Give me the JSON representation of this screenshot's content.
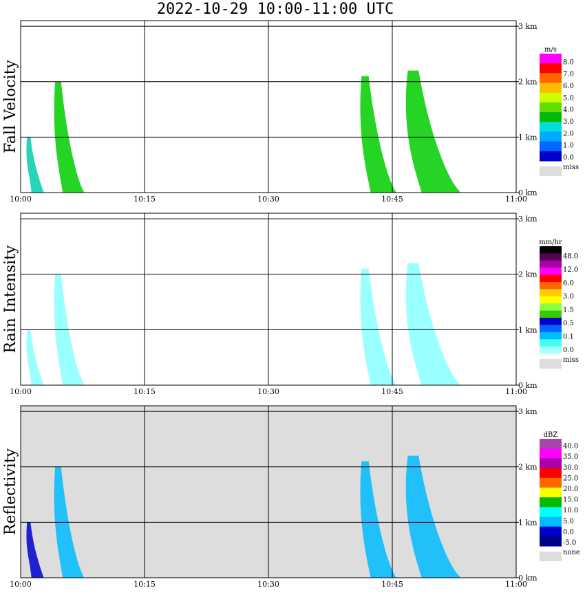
{
  "title": "2022-10-29   10:00-11:00 UTC",
  "chart_data": [
    {
      "type": "heatmap",
      "ylabel": "Fall Velocity",
      "x_ticks": [
        "10:00",
        "10:15",
        "10:30",
        "10:45",
        "11:00"
      ],
      "y_ticks": [
        "0 km",
        "1 km",
        "2 km",
        "3 km"
      ],
      "xlim": [
        "10:00",
        "11:00"
      ],
      "ylim_km": [
        0,
        3.1
      ],
      "grid": true,
      "colorbar": {
        "unit": "m/s",
        "labels": [
          "8.0",
          "7.0",
          "6.0",
          "5.0",
          "4.0",
          "3.0",
          "2.0",
          "1.0",
          "0.0"
        ],
        "colors": [
          "#ff00ff",
          "#ff0000",
          "#ff6600",
          "#ffbb00",
          "#ccff00",
          "#66dd00",
          "#00bb00",
          "#00dddd",
          "#00aaff",
          "#0066ff",
          "#0000cc"
        ],
        "miss_label": "miss",
        "miss_color": "#dddddd"
      },
      "echoes": [
        {
          "x0": "10:00.5",
          "x1": "10:02.8",
          "top_km": 1.0,
          "color": "#00ccaa"
        },
        {
          "x0": "10:03.7",
          "x1": "10:07.7",
          "top_km": 2.0,
          "color": "#00cc00"
        },
        {
          "x0": "10:40.7",
          "x1": "10:45.5",
          "top_km": 2.1,
          "color": "#00cc00"
        },
        {
          "x0": "10:46.0",
          "x1": "10:53.3",
          "top_km": 2.2,
          "color": "#00cc00"
        }
      ]
    },
    {
      "type": "heatmap",
      "ylabel": "Rain Intensity",
      "x_ticks": [
        "10:00",
        "10:15",
        "10:30",
        "10:45",
        "11:00"
      ],
      "y_ticks": [
        "0 km",
        "1 km",
        "2 km",
        "3 km"
      ],
      "xlim": [
        "10:00",
        "11:00"
      ],
      "ylim_km": [
        0,
        3.1
      ],
      "grid": true,
      "colorbar": {
        "unit": "mm/hr",
        "labels": [
          "48.0",
          "12.0",
          "6.0",
          "3.0",
          "1.5",
          "0.5",
          "0.1",
          "0.0"
        ],
        "colors": [
          "#000000",
          "#550055",
          "#aa00aa",
          "#ff00ff",
          "#ff0000",
          "#ff6600",
          "#ffcc00",
          "#ffff00",
          "#88ff44",
          "#33cc00",
          "#0000cc",
          "#0066ff",
          "#00bbff",
          "#44ffee",
          "#aaffff"
        ],
        "miss_label": "miss",
        "miss_color": "#dddddd"
      },
      "echoes": [
        {
          "x0": "10:00.5",
          "x1": "10:02.8",
          "top_km": 1.0,
          "color": "#88ffff"
        },
        {
          "x0": "10:03.7",
          "x1": "10:07.7",
          "top_km": 2.0,
          "color": "#88ffff"
        },
        {
          "x0": "10:40.7",
          "x1": "10:45.5",
          "top_km": 2.1,
          "color": "#88ffff"
        },
        {
          "x0": "10:46.0",
          "x1": "10:53.3",
          "top_km": 2.2,
          "color": "#88ffff"
        }
      ]
    },
    {
      "type": "heatmap",
      "ylabel": "Reflectivity",
      "x_ticks": [
        "10:00",
        "10:15",
        "10:30",
        "10:45",
        "11:00"
      ],
      "y_ticks": [
        "0 km",
        "1 km",
        "2 km",
        "3 km"
      ],
      "xlim": [
        "10:00",
        "11:00"
      ],
      "ylim_km": [
        0,
        3.1
      ],
      "grid": true,
      "background": "#dddddd",
      "colorbar": {
        "unit": "dBZ",
        "labels": [
          "40.0",
          "35.0",
          "30.0",
          "25.0",
          "20.0",
          "15.0",
          "10.0",
          "5.0",
          "0.0",
          "-5.0"
        ],
        "colors": [
          "#aa44aa",
          "#ff00ff",
          "#aa00aa",
          "#ff0000",
          "#ff6600",
          "#ffff00",
          "#00bb00",
          "#00ffff",
          "#00bbff",
          "#0000cc",
          "#000088"
        ],
        "miss_label": "none",
        "miss_color": "#dddddd"
      },
      "echoes": [
        {
          "x0": "10:00.5",
          "x1": "10:02.8",
          "top_km": 1.0,
          "color": "#0000cc"
        },
        {
          "x0": "10:03.7",
          "x1": "10:07.7",
          "top_km": 2.0,
          "color": "#00bbff"
        },
        {
          "x0": "10:40.7",
          "x1": "10:45.5",
          "top_km": 2.1,
          "color": "#00bbff"
        },
        {
          "x0": "10:46.0",
          "x1": "10:53.3",
          "top_km": 2.2,
          "color": "#00bbff"
        }
      ]
    }
  ]
}
